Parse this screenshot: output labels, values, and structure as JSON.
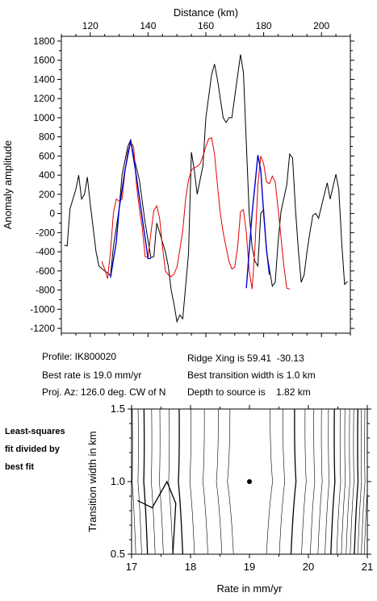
{
  "chart_data": [
    {
      "type": "line",
      "xlabel": "Distance (km)",
      "ylabel": "Anomaly amplitude",
      "xlim": [
        110,
        210
      ],
      "ylim": [
        -1250,
        1850
      ],
      "x_ticks": [
        120,
        140,
        160,
        180,
        200
      ],
      "y_ticks": [
        -1200,
        -1000,
        -800,
        -600,
        -400,
        -200,
        0,
        200,
        400,
        600,
        800,
        1000,
        1200,
        1400,
        1600,
        1800
      ],
      "series": [
        {
          "color": "#000000",
          "points": [
            [
              111,
              -330
            ],
            [
              112,
              -340
            ],
            [
              113,
              50
            ],
            [
              115,
              250
            ],
            [
              116,
              400
            ],
            [
              117,
              150
            ],
            [
              118,
              200
            ],
            [
              119,
              380
            ],
            [
              120,
              100
            ],
            [
              121,
              -150
            ],
            [
              122,
              -400
            ],
            [
              123,
              -550
            ],
            [
              125,
              -600
            ],
            [
              126,
              -620
            ],
            [
              127,
              -650
            ],
            [
              128,
              -350
            ],
            [
              130,
              50
            ],
            [
              131,
              400
            ],
            [
              133,
              700
            ],
            [
              134,
              770
            ],
            [
              135,
              600
            ],
            [
              137,
              350
            ],
            [
              139,
              -100
            ],
            [
              141,
              -460
            ],
            [
              142,
              -450
            ],
            [
              143,
              -100
            ],
            [
              144,
              -200
            ],
            [
              145,
              -300
            ],
            [
              146,
              -400
            ],
            [
              147,
              -550
            ],
            [
              148,
              -800
            ],
            [
              149,
              -950
            ],
            [
              150,
              -1130
            ],
            [
              151,
              -1060
            ],
            [
              152,
              -1100
            ],
            [
              154,
              -420
            ],
            [
              155,
              640
            ],
            [
              156,
              450
            ],
            [
              157,
              200
            ],
            [
              159,
              500
            ],
            [
              160,
              1000
            ],
            [
              162,
              1450
            ],
            [
              163,
              1560
            ],
            [
              164,
              1400
            ],
            [
              166,
              1000
            ],
            [
              167,
              950
            ],
            [
              168,
              1000
            ],
            [
              169,
              1000
            ],
            [
              171,
              1440
            ],
            [
              172,
              1660
            ],
            [
              173,
              1470
            ],
            [
              175,
              0
            ],
            [
              176,
              -350
            ],
            [
              177,
              -500
            ],
            [
              178,
              -550
            ],
            [
              179,
              0
            ],
            [
              180,
              40
            ],
            [
              181,
              -400
            ],
            [
              183,
              -760
            ],
            [
              184,
              -720
            ],
            [
              185,
              -300
            ],
            [
              186,
              20
            ],
            [
              188,
              300
            ],
            [
              189,
              620
            ],
            [
              190,
              580
            ],
            [
              191,
              50
            ],
            [
              192,
              -380
            ],
            [
              193,
              -720
            ],
            [
              194,
              -640
            ],
            [
              195,
              -400
            ],
            [
              196,
              -200
            ],
            [
              197,
              -20
            ],
            [
              198,
              0
            ],
            [
              199,
              -50
            ],
            [
              201,
              200
            ],
            [
              202,
              320
            ],
            [
              203,
              150
            ],
            [
              204,
              280
            ],
            [
              205,
              410
            ],
            [
              206,
              250
            ],
            [
              207,
              -300
            ],
            [
              208,
              -740
            ],
            [
              209,
              -710
            ]
          ]
        },
        {
          "color": "#e10000",
          "points": [
            [
              124,
              -500
            ],
            [
              125,
              -580
            ],
            [
              126,
              -680
            ],
            [
              127,
              -400
            ],
            [
              128,
              0
            ],
            [
              129,
              150
            ],
            [
              130,
              130
            ],
            [
              131,
              150
            ],
            [
              132,
              430
            ],
            [
              133,
              650
            ],
            [
              134,
              740
            ],
            [
              135,
              700
            ],
            [
              136,
              300
            ],
            [
              137,
              50
            ],
            [
              138,
              -150
            ],
            [
              139,
              -450
            ],
            [
              140,
              -460
            ],
            [
              141,
              -200
            ],
            [
              142,
              30
            ],
            [
              143,
              80
            ],
            [
              144,
              -50
            ],
            [
              145,
              -350
            ],
            [
              146,
              -600
            ],
            [
              147,
              -640
            ],
            [
              148,
              -660
            ],
            [
              149,
              -630
            ],
            [
              150,
              -560
            ],
            [
              151,
              -380
            ],
            [
              152,
              -180
            ],
            [
              153,
              150
            ],
            [
              154,
              350
            ],
            [
              155,
              450
            ],
            [
              156,
              480
            ],
            [
              157,
              490
            ],
            [
              158,
              520
            ],
            [
              159,
              600
            ],
            [
              160,
              700
            ],
            [
              161,
              780
            ],
            [
              162,
              790
            ],
            [
              163,
              620
            ],
            [
              164,
              300
            ],
            [
              165,
              0
            ],
            [
              166,
              -200
            ],
            [
              167,
              -350
            ],
            [
              168,
              -500
            ],
            [
              169,
              -580
            ],
            [
              170,
              -560
            ],
            [
              171,
              -350
            ],
            [
              172,
              20
            ],
            [
              173,
              40
            ],
            [
              174,
              -200
            ],
            [
              175,
              -600
            ],
            [
              176,
              -790
            ],
            [
              177,
              -350
            ],
            [
              178,
              300
            ],
            [
              179,
              600
            ],
            [
              180,
              520
            ],
            [
              181,
              330
            ],
            [
              182,
              310
            ],
            [
              183,
              390
            ],
            [
              184,
              330
            ],
            [
              185,
              50
            ],
            [
              186,
              -250
            ],
            [
              187,
              -550
            ],
            [
              188,
              -780
            ],
            [
              189,
              -790
            ]
          ]
        },
        {
          "color": "#0000cc",
          "points": [
            [
              127,
              -670
            ],
            [
              129,
              -300
            ],
            [
              130,
              50
            ],
            [
              132,
              450
            ],
            [
              134,
              760
            ],
            [
              136,
              380
            ],
            [
              138,
              -50
            ],
            [
              140,
              -470
            ],
            [
              141,
              -470
            ],
            [
              174,
              -780
            ],
            [
              176,
              0
            ],
            [
              177,
              300
            ],
            [
              178,
              610
            ],
            [
              179,
              450
            ],
            [
              180,
              0
            ],
            [
              181,
              -380
            ],
            [
              182,
              -640
            ]
          ]
        }
      ]
    },
    {
      "type": "contour",
      "xlabel": "Rate in mm/yr",
      "ylabel": "Transition width in km",
      "xlim": [
        17,
        21
      ],
      "ylim": [
        0.5,
        1.5
      ],
      "x_ticks": [
        17,
        18,
        19,
        20,
        21
      ],
      "y_ticks": [
        0.5,
        1.0,
        1.5
      ],
      "best_fit_point": [
        19.0,
        1.0
      ]
    }
  ],
  "info": {
    "profile": "Profile: IK800020",
    "best_rate": "Best rate is 19.0 mm/yr",
    "proj_az": "Proj. Az: 126.0 deg. CW of N",
    "ridge_xing": "Ridge Xing is 59.41  -30.13",
    "transition": "Best transition width is 1.0 km",
    "depth": "Depth to source is    1.82 km"
  },
  "side_label": [
    "Least-squares",
    "fit divided by",
    "best fit"
  ]
}
